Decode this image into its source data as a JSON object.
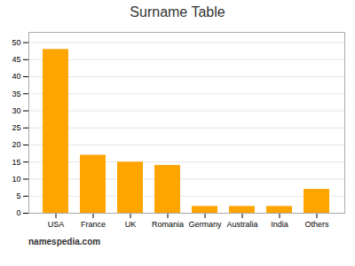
{
  "chart_data": {
    "type": "bar",
    "title": "Surname Table",
    "categories": [
      "USA",
      "France",
      "UK",
      "Romania",
      "Germany",
      "Australia",
      "India",
      "Others"
    ],
    "values": [
      48,
      17,
      15,
      14,
      2,
      2,
      2,
      7
    ],
    "color": "#FFA500",
    "ylim": [
      0,
      53
    ],
    "yticks": [
      0,
      5,
      10,
      15,
      20,
      25,
      30,
      35,
      40,
      45,
      50
    ],
    "grid": true,
    "annotations": [
      "namespedia.com"
    ]
  }
}
